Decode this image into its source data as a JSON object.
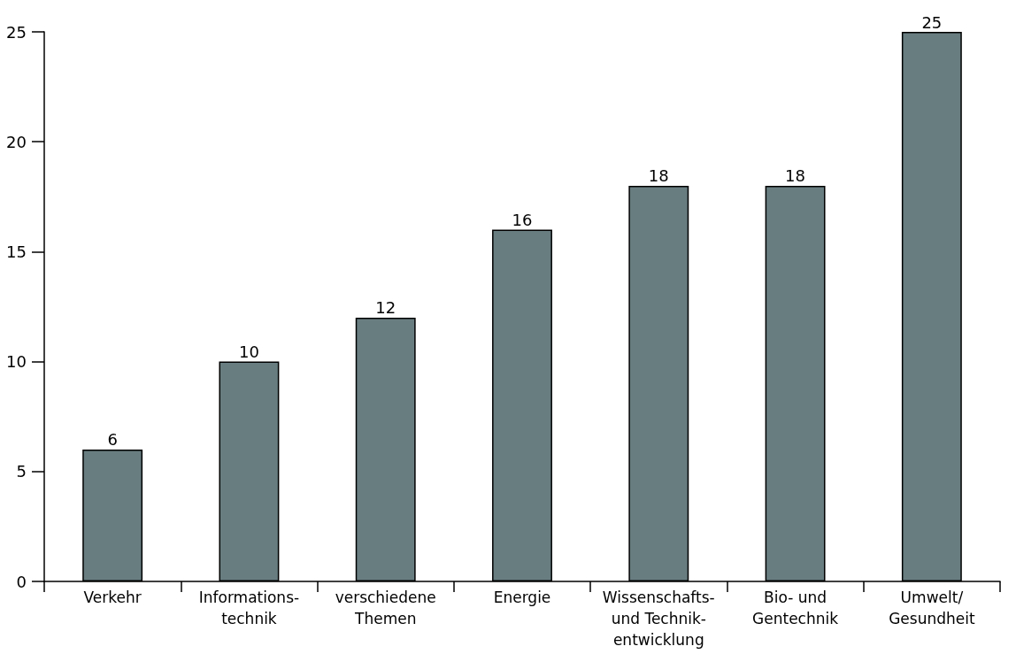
{
  "chart_data": {
    "type": "bar",
    "categories": [
      "Verkehr",
      "Informations-\ntechnik",
      "verschiedene\nThemen",
      "Energie",
      "Wissenschafts-\nund Technik-\nentwicklung",
      "Bio- und\nGentechnik",
      "Umwelt/\nGesundheit"
    ],
    "values": [
      6,
      10,
      12,
      16,
      18,
      18,
      25
    ],
    "color": "#687d80",
    "ylim": [
      0,
      25
    ],
    "yticks": [
      0,
      5,
      10,
      15,
      20,
      25
    ],
    "data_labels": true,
    "grid": false
  }
}
